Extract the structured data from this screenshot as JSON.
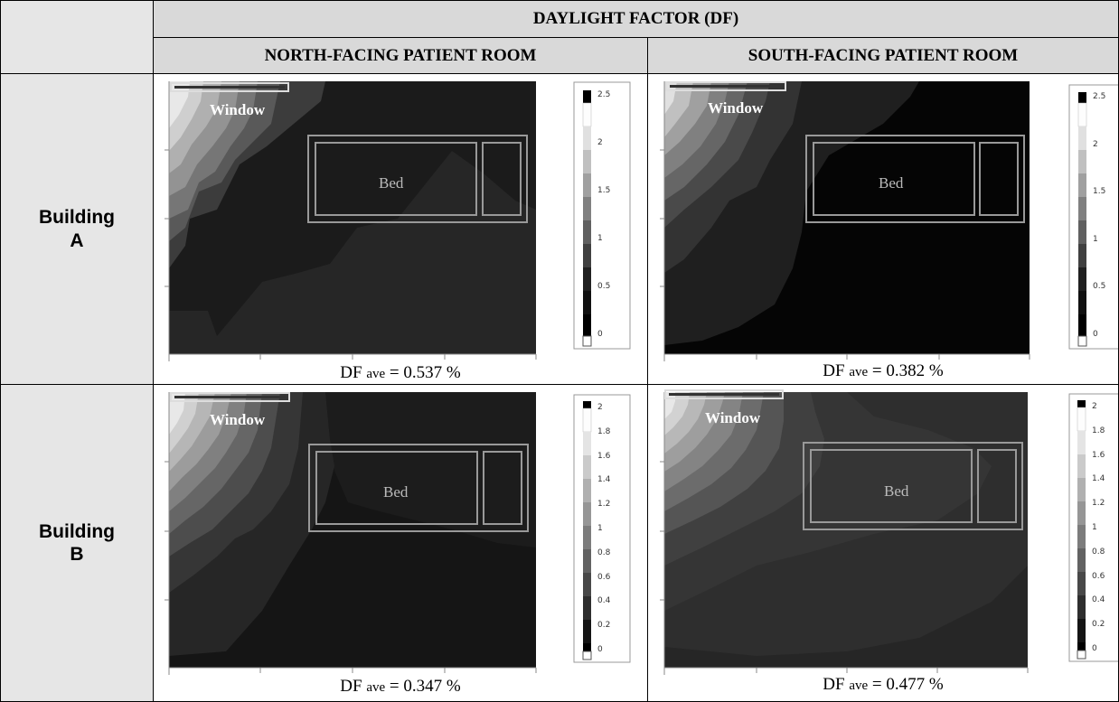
{
  "table": {
    "header_main": "DAYLIGHT FACTOR (DF)",
    "col_north": "NORTH-FACING PATIENT ROOM",
    "col_south": "SOUTH-FACING PATIENT ROOM",
    "row_a": [
      "Building",
      "A"
    ],
    "row_b": [
      "Building",
      "B"
    ]
  },
  "labels": {
    "window": "Window",
    "bed": "Bed"
  },
  "plots": {
    "a_north": {
      "df_prefix": "DF",
      "df_sub": "ave",
      "df_value": "= 0.537 %",
      "scale": [
        "2.5",
        "2",
        "1.5",
        "1",
        "0.5",
        "0"
      ]
    },
    "a_south": {
      "df_prefix": "DF",
      "df_sub": "ave",
      "df_value": "= 0.382 %",
      "scale": [
        "2.5",
        "2",
        "1.5",
        "1",
        "0.5",
        "0"
      ]
    },
    "b_north": {
      "df_prefix": "DF",
      "df_sub": "ave",
      "df_value": "= 0.347 %",
      "scale": [
        "2",
        "1.8",
        "1.6",
        "1.4",
        "1.2",
        "1",
        "0.8",
        "0.6",
        "0.4",
        "0.2",
        "0"
      ]
    },
    "b_south": {
      "df_prefix": "DF",
      "df_sub": "ave",
      "df_value": "= 0.477 %",
      "scale": [
        "2",
        "1.8",
        "1.6",
        "1.4",
        "1.2",
        "1",
        "0.8",
        "0.6",
        "0.4",
        "0.2",
        "0"
      ]
    }
  }
}
